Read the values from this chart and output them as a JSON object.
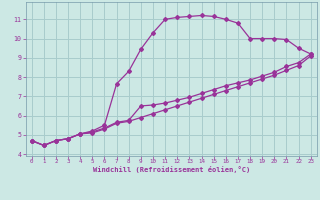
{
  "background_color": "#cce8e4",
  "grid_color": "#a8cccc",
  "line_color": "#993399",
  "marker_color": "#993399",
  "xlabel": "Windchill (Refroidissement éolien,°C)",
  "xlabel_color": "#993399",
  "tick_color": "#993399",
  "ylim_min": 3.9,
  "ylim_max": 11.9,
  "xlim_min": -0.5,
  "xlim_max": 23.5,
  "yticks": [
    4,
    5,
    6,
    7,
    8,
    9,
    10,
    11
  ],
  "xticks": [
    0,
    1,
    2,
    3,
    4,
    5,
    6,
    7,
    8,
    9,
    10,
    11,
    12,
    13,
    14,
    15,
    16,
    17,
    18,
    19,
    20,
    21,
    22,
    23
  ],
  "curve_peak_x": [
    0,
    1,
    2,
    3,
    4,
    5,
    6,
    7,
    8,
    9,
    10,
    11,
    12,
    13,
    14,
    15,
    16,
    17,
    18,
    19,
    20,
    21,
    22,
    23
  ],
  "curve_peak_y": [
    4.7,
    4.45,
    4.7,
    4.8,
    5.05,
    5.2,
    5.5,
    7.65,
    8.3,
    9.45,
    10.3,
    11.0,
    11.1,
    11.15,
    11.2,
    11.15,
    11.0,
    10.8,
    10.0,
    10.0,
    10.0,
    9.95,
    9.5,
    9.2
  ],
  "curve_upper_x": [
    0,
    1,
    2,
    3,
    4,
    5,
    6,
    7,
    8,
    9,
    10,
    11,
    12,
    13,
    14,
    15,
    16,
    17,
    18,
    19,
    20,
    21,
    22,
    23
  ],
  "curve_upper_y": [
    4.7,
    4.45,
    4.7,
    4.8,
    5.05,
    5.15,
    5.35,
    5.65,
    5.75,
    6.5,
    6.55,
    6.65,
    6.8,
    6.95,
    7.15,
    7.35,
    7.55,
    7.7,
    7.85,
    8.05,
    8.25,
    8.55,
    8.75,
    9.2
  ],
  "curve_lower_x": [
    0,
    1,
    2,
    3,
    4,
    5,
    6,
    7,
    8,
    9,
    10,
    11,
    12,
    13,
    14,
    15,
    16,
    17,
    18,
    19,
    20,
    21,
    22,
    23
  ],
  "curve_lower_y": [
    4.7,
    4.45,
    4.7,
    4.8,
    5.05,
    5.1,
    5.3,
    5.6,
    5.7,
    5.9,
    6.1,
    6.3,
    6.5,
    6.7,
    6.9,
    7.1,
    7.3,
    7.5,
    7.7,
    7.9,
    8.1,
    8.35,
    8.6,
    9.1
  ]
}
